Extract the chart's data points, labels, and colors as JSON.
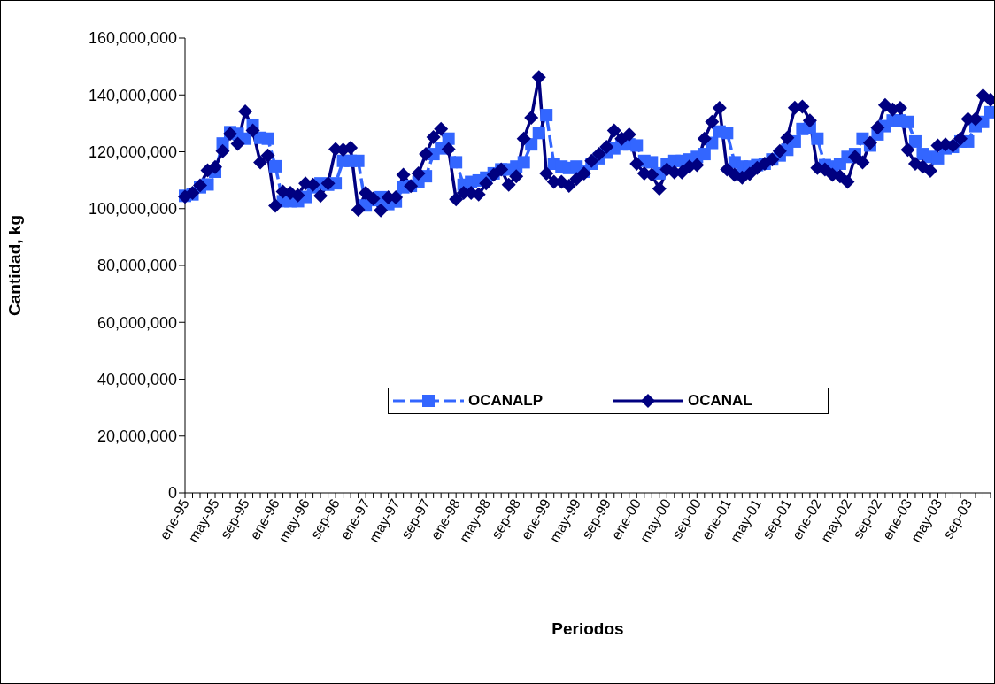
{
  "chart_data": {
    "type": "line",
    "xlabel": "Periodos",
    "ylabel": "Cantidad, kg",
    "categories": [
      "ene-95",
      null,
      null,
      null,
      "may-95",
      null,
      null,
      null,
      "sep-95",
      null,
      null,
      null,
      "ene-96",
      null,
      null,
      null,
      "may-96",
      null,
      null,
      null,
      "sep-96",
      null,
      null,
      null,
      "ene-97",
      null,
      null,
      null,
      "may-97",
      null,
      null,
      null,
      "sep-97",
      null,
      null,
      null,
      "ene-98",
      null,
      null,
      null,
      "may-98",
      null,
      null,
      null,
      "sep-98",
      null,
      null,
      null,
      "ene-99",
      null,
      null,
      null,
      "may-99",
      null,
      null,
      null,
      "sep-99",
      null,
      null,
      null,
      "ene-00",
      null,
      null,
      null,
      "may-00",
      null,
      null,
      null,
      "sep-00",
      null,
      null,
      null,
      "ene-01",
      null,
      null,
      null,
      "may-01",
      null,
      null,
      null,
      "sep-01",
      null,
      null,
      null,
      "ene-02",
      null,
      null,
      null,
      "may-02",
      null,
      null,
      null,
      "sep-02",
      null,
      null,
      null,
      "ene-03",
      null,
      null,
      null,
      "may-03",
      null,
      null,
      null,
      "sep-03",
      null,
      null,
      null
    ],
    "series": [
      {
        "name": "OCANALP",
        "color": "#3366ff",
        "marker": "square",
        "line_style": "dashed",
        "values": [
          104500000,
          105000000,
          107500000,
          108500000,
          113000000,
          122900000,
          126900000,
          126300000,
          124600000,
          129500000,
          124900000,
          124600000,
          114900000,
          102600000,
          102600000,
          102600000,
          104100000,
          107500000,
          108900000,
          108400000,
          108900000,
          116800000,
          116800000,
          116800000,
          101100000,
          103000000,
          104000000,
          101600000,
          102500000,
          107500000,
          108000000,
          109400000,
          111400000,
          119200000,
          121200000,
          124600000,
          116300000,
          108400000,
          109400000,
          109900000,
          110900000,
          112400000,
          113800000,
          113800000,
          114800000,
          116300000,
          122600000,
          126600000,
          132900000,
          115800000,
          114800000,
          114300000,
          114800000,
          113000000,
          115800000,
          117700000,
          119700000,
          121200000,
          122600000,
          122600000,
          122200000,
          116800000,
          116300000,
          112400000,
          115800000,
          116800000,
          116800000,
          117300000,
          118200000,
          119200000,
          123100000,
          127100000,
          126600000,
          116300000,
          114800000,
          114800000,
          115300000,
          115800000,
          117300000,
          118700000,
          120700000,
          123600000,
          128000000,
          128500000,
          124600000,
          115300000,
          114800000,
          115800000,
          118200000,
          119200000,
          124600000,
          122200000,
          126100000,
          129000000,
          131000000,
          131000000,
          130500000,
          123600000,
          119200000,
          118200000,
          117700000,
          121200000,
          121700000,
          123600000,
          123600000,
          129000000,
          130500000,
          133900000
        ]
      },
      {
        "name": "OCANAL",
        "color": "#000080",
        "marker": "diamond",
        "line_style": "solid",
        "values": [
          104200000,
          105500000,
          108200000,
          113500000,
          114600000,
          120200000,
          126300000,
          122800000,
          134200000,
          127500000,
          116300000,
          118700000,
          101000000,
          106000000,
          105500000,
          104700000,
          108900000,
          108400000,
          104500000,
          108900000,
          120900000,
          120700000,
          121400000,
          99600000,
          105500000,
          103500000,
          99400000,
          104000000,
          104000000,
          111900000,
          107900000,
          112400000,
          119200000,
          125100000,
          128000000,
          120900000,
          103300000,
          105500000,
          105500000,
          105000000,
          108900000,
          111900000,
          113800000,
          108400000,
          111400000,
          124600000,
          132000000,
          146200000,
          112400000,
          109400000,
          109400000,
          108000000,
          110400000,
          112400000,
          116800000,
          119200000,
          121700000,
          127500000,
          124600000,
          126100000,
          115800000,
          112400000,
          111900000,
          107000000,
          113800000,
          112800000,
          112800000,
          114800000,
          115300000,
          124600000,
          130500000,
          135400000,
          113800000,
          111900000,
          110900000,
          112200000,
          114300000,
          115800000,
          117300000,
          120200000,
          124900000,
          135500000,
          135900000,
          131000000,
          114300000,
          113800000,
          111900000,
          111400000,
          109400000,
          118200000,
          116300000,
          123100000,
          128500000,
          136400000,
          134900000,
          135400000,
          120700000,
          115800000,
          114800000,
          113300000,
          122200000,
          122600000,
          122200000,
          124600000,
          131500000,
          131500000,
          139800000,
          138300000
        ]
      }
    ],
    "ylim": [
      0,
      160000000
    ],
    "yticks": [
      0,
      {
        "value": 20000000,
        "label": "20,000,000"
      },
      {
        "value": 40000000,
        "label": "40,000,000"
      },
      {
        "value": 60000000,
        "label": "60,000,000"
      },
      {
        "value": 80000000,
        "label": "80,000,000"
      },
      {
        "value": 100000000,
        "label": "100,000,000"
      },
      {
        "value": 120000000,
        "label": "120,000,000"
      },
      {
        "value": 140000000,
        "label": "140,000,000"
      },
      {
        "value": 160000000,
        "label": "160,000,000"
      }
    ],
    "grid": false,
    "legend": "bottom"
  }
}
